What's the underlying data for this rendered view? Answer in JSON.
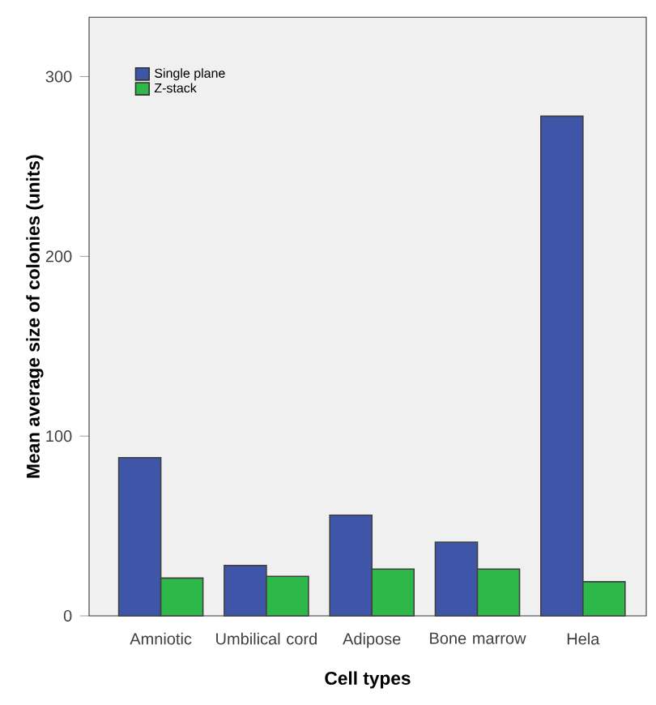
{
  "chart_data": {
    "type": "bar",
    "xlabel": "Cell types",
    "ylabel": "Mean average size of colonies (units)",
    "categories": [
      "Amniotic",
      "Umbilical cord",
      "Adipose",
      "Bone marrow",
      "Hela"
    ],
    "series": [
      {
        "name": "Single plane",
        "color": "#3f56a8",
        "values": [
          88,
          28,
          56,
          41,
          278
        ]
      },
      {
        "name": "Z-stack",
        "color": "#2fb84a",
        "values": [
          21,
          22,
          26,
          26,
          19
        ]
      }
    ],
    "ylim": [
      0,
      333
    ],
    "yticks": [
      0,
      100,
      200,
      300
    ],
    "grid": false,
    "legend": "top left"
  }
}
